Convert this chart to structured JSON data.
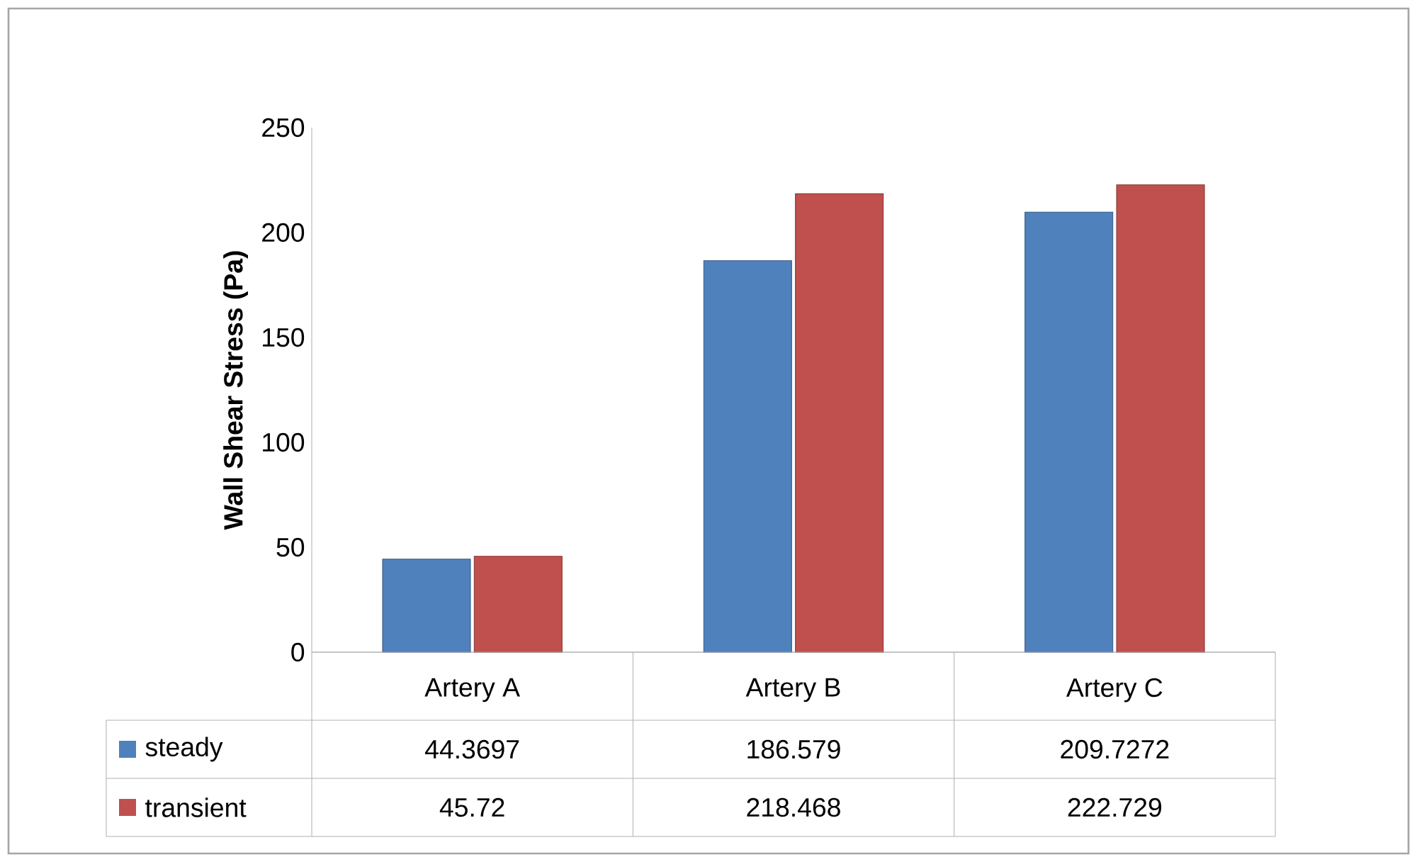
{
  "chart_data": {
    "type": "bar",
    "ylabel": "Wall Shear Stress (Pa)",
    "categories": [
      "Artery A",
      "Artery B",
      "Artery C"
    ],
    "series": [
      {
        "name": "steady",
        "color": "#4f81bd",
        "values": [
          44.3697,
          186.579,
          209.7272
        ]
      },
      {
        "name": "transient",
        "color": "#c0504d",
        "values": [
          45.72,
          218.468,
          222.729
        ]
      }
    ],
    "ylim": [
      0,
      250
    ],
    "yticks": [
      0,
      50,
      100,
      150,
      200,
      250
    ],
    "data_labels": true,
    "legend": "bottom"
  }
}
